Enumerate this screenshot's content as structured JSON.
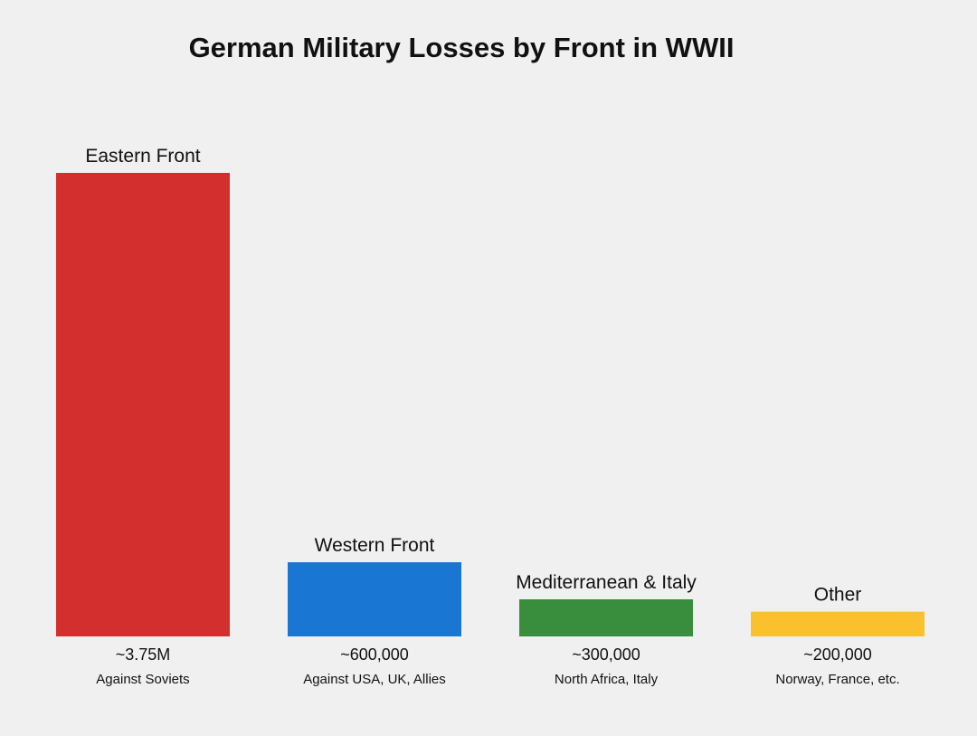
{
  "chart_data": {
    "type": "bar",
    "title": "German Military Losses by Front in WWII",
    "xlabel": "",
    "ylabel": "",
    "ylim": [
      0,
      3750000
    ],
    "grid": false,
    "legend": "none",
    "categories": [
      "Eastern Front",
      "Western Front",
      "Mediterranean & Italy",
      "Other"
    ],
    "values": [
      3750000,
      600000,
      300000,
      200000
    ],
    "value_labels": [
      "~3.75M",
      "~600,000",
      "~300,000",
      "~200,000"
    ],
    "sub_labels": [
      "Against Soviets",
      "Against USA, UK, Allies",
      "North Africa, Italy",
      "Norway, France, etc."
    ],
    "colors": [
      "#d32f2f",
      "#1976d2",
      "#388e3c",
      "#fbc02d"
    ]
  }
}
